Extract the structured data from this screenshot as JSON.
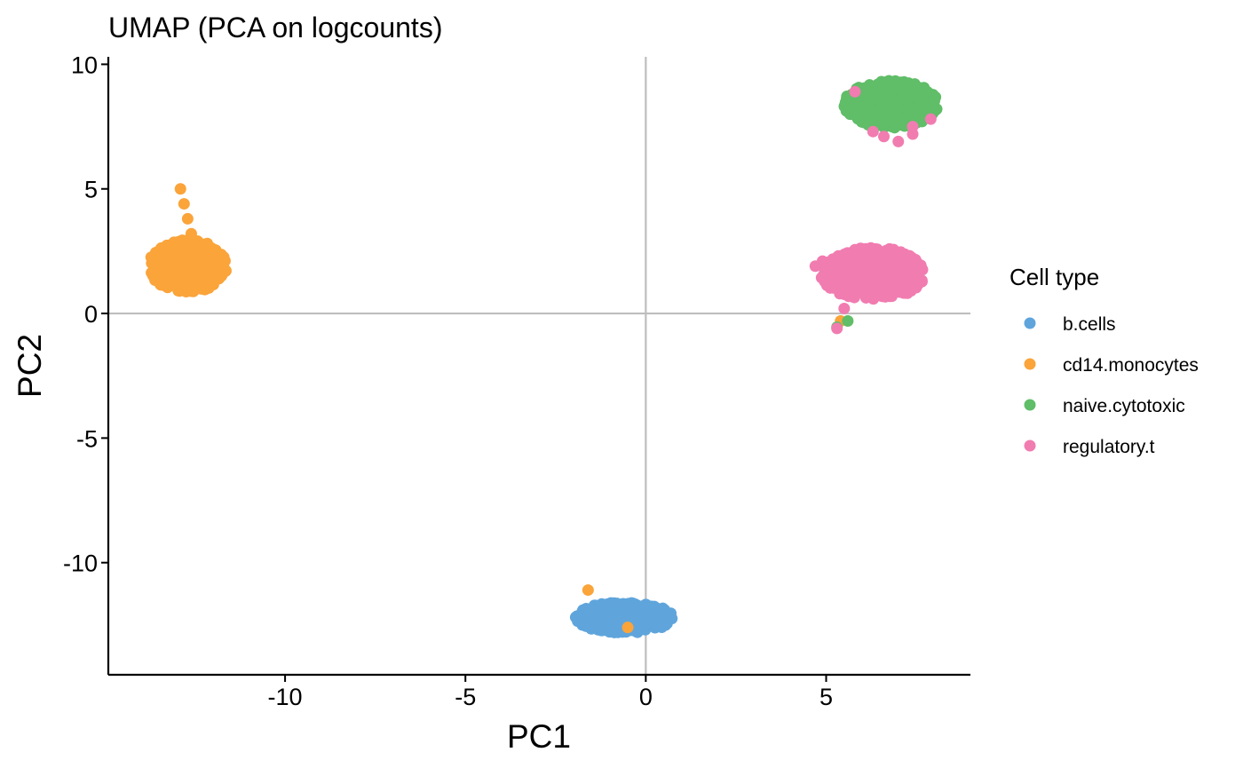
{
  "chart_data": {
    "type": "scatter",
    "title": "UMAP (PCA on logcounts)",
    "xlabel": "PC1",
    "ylabel": "PC2",
    "xlim": [
      -14.9,
      9.0
    ],
    "ylim": [
      -14.5,
      10.3
    ],
    "xticks": [
      -10,
      -5,
      0,
      5
    ],
    "xtick_labels": [
      "-10",
      "-5",
      "0",
      "5"
    ],
    "yticks": [
      -10,
      -5,
      0,
      5,
      10
    ],
    "ytick_labels": [
      "-10",
      "-5",
      "0",
      "5",
      "10"
    ],
    "reference_lines": {
      "x": 0,
      "y": 0,
      "color": "#bebebe"
    },
    "grid": false,
    "legend": {
      "title": "Cell type",
      "position": "right"
    },
    "series": [
      {
        "name": "b.cells",
        "color": "#5fa5dc",
        "cluster_center": [
          -0.6,
          -12.2
        ],
        "cluster_spread": [
          1.35,
          0.62
        ],
        "n_points": 420,
        "extra_points": []
      },
      {
        "name": "cd14.monocytes",
        "color": "#faa43a",
        "cluster_center": [
          -12.7,
          1.9
        ],
        "cluster_spread": [
          1.1,
          1.05
        ],
        "n_points": 420,
        "extra_points": [
          [
            -12.9,
            5.0
          ],
          [
            -12.8,
            4.4
          ],
          [
            -12.7,
            3.8
          ],
          [
            -12.6,
            3.2
          ],
          [
            -1.6,
            -11.1
          ],
          [
            -0.5,
            -12.6
          ],
          [
            5.4,
            -0.3
          ]
        ]
      },
      {
        "name": "naive.cytotoxic",
        "color": "#60bd68",
        "cluster_center": [
          6.8,
          8.4
        ],
        "cluster_spread": [
          1.3,
          0.95
        ],
        "n_points": 420,
        "extra_points": [
          [
            5.6,
            -0.3
          ],
          [
            5.3,
            -0.55
          ]
        ]
      },
      {
        "name": "regulatory.t",
        "color": "#f17cb0",
        "cluster_center": [
          6.3,
          1.6
        ],
        "cluster_spread": [
          1.45,
          1.05
        ],
        "n_points": 420,
        "extra_points": [
          [
            5.8,
            8.9
          ],
          [
            6.3,
            7.3
          ],
          [
            6.6,
            7.1
          ],
          [
            7.0,
            6.9
          ],
          [
            7.4,
            7.2
          ],
          [
            7.9,
            7.8
          ],
          [
            7.4,
            7.5
          ],
          [
            5.3,
            -0.6
          ],
          [
            5.5,
            0.2
          ],
          [
            4.7,
            1.9
          ],
          [
            4.9,
            2.1
          ]
        ]
      }
    ]
  }
}
